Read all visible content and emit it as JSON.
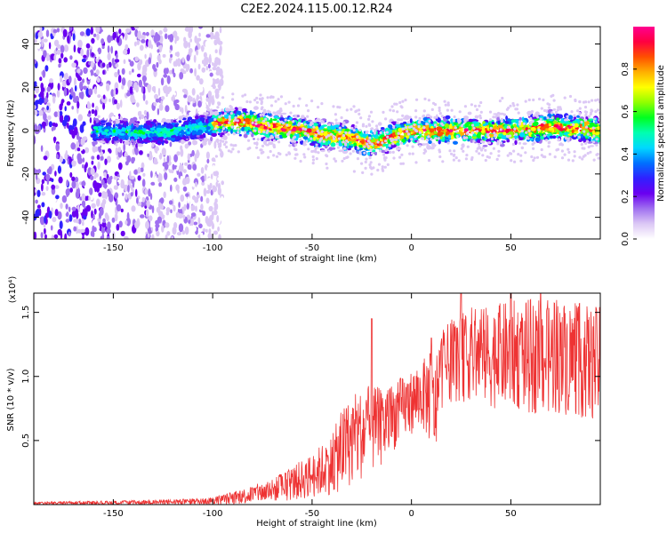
{
  "title": "C2E2.2024.115.00.12.R24",
  "chart_data": [
    {
      "type": "heatmap",
      "xlabel": "Height of straight line (km)",
      "ylabel": "Frequency (Hz)",
      "xlim": [
        -190,
        95
      ],
      "ylim": [
        -50,
        48
      ],
      "xticks": [
        -150,
        -100,
        -50,
        0,
        50
      ],
      "yticks": [
        -40,
        -20,
        0,
        20,
        40
      ],
      "colorbar": {
        "label": "Normalized spectral amplitude",
        "range": [
          0,
          1
        ],
        "ticks": [
          0.0,
          0.2,
          0.4,
          0.6,
          0.8
        ],
        "colormap": [
          "#ffffff",
          "#dcc8f5",
          "#a070f0",
          "#6a00f0",
          "#3020ff",
          "#0070ff",
          "#00d8ff",
          "#00ffb0",
          "#00ff20",
          "#90ff00",
          "#ffff00",
          "#ffb000",
          "#ff5000",
          "#ff0040",
          "#ff0090"
        ]
      },
      "ridge": {
        "x": [
          -155,
          -140,
          -125,
          -110,
          -100,
          -95,
          -85,
          -75,
          -65,
          -55,
          -45,
          -35,
          -28,
          -20,
          -15,
          -10,
          -5,
          0,
          10,
          20,
          30,
          40,
          50,
          60,
          70,
          80,
          90,
          95
        ],
        "y": [
          0,
          -1,
          -1,
          1,
          2,
          4,
          4,
          2,
          1,
          0,
          -2,
          -3,
          -4,
          -6,
          -5,
          -3,
          -1,
          0,
          0,
          0,
          0,
          0,
          0,
          1,
          2,
          1,
          1,
          -1
        ]
      }
    },
    {
      "type": "line",
      "xlabel": "Height of straight line (km)",
      "ylabel": "SNR (10 * v/v)",
      "y_multiplier": "(x10⁴)",
      "xlim": [
        -190,
        95
      ],
      "ylim": [
        0,
        1.65
      ],
      "xticks": [
        -150,
        -100,
        -50,
        0,
        50
      ],
      "yticks": [
        0.5,
        1.0,
        1.5
      ],
      "line_color": "#ee3333",
      "envelope": {
        "x": [
          -190,
          -150,
          -120,
          -105,
          -100,
          -90,
          -80,
          -70,
          -60,
          -50,
          -40,
          -35,
          -30,
          -25,
          -20,
          -15,
          -10,
          -5,
          0,
          5,
          10,
          12,
          15,
          20,
          25,
          30,
          40,
          50,
          60,
          70,
          80,
          90,
          95
        ],
        "low": [
          0.0,
          0.0,
          0.0,
          0.0,
          0.0,
          0.0,
          0.01,
          0.02,
          0.03,
          0.05,
          0.08,
          0.1,
          0.15,
          0.2,
          0.25,
          0.3,
          0.4,
          0.5,
          0.55,
          0.6,
          0.45,
          0.35,
          0.75,
          0.8,
          0.8,
          0.8,
          0.75,
          0.75,
          0.7,
          0.7,
          0.7,
          0.65,
          0.65
        ],
        "high": [
          0.02,
          0.03,
          0.04,
          0.05,
          0.06,
          0.1,
          0.15,
          0.2,
          0.3,
          0.4,
          0.55,
          0.75,
          0.85,
          0.9,
          0.95,
          0.9,
          0.95,
          1.0,
          1.05,
          1.1,
          1.25,
          1.1,
          1.35,
          1.45,
          1.5,
          1.55,
          1.55,
          1.6,
          1.6,
          1.6,
          1.6,
          1.55,
          1.55
        ]
      },
      "spikes": [
        {
          "x": -20,
          "y": 1.45
        },
        {
          "x": 10,
          "y": 1.3
        },
        {
          "x": 25,
          "y": 1.65
        },
        {
          "x": 50,
          "y": 1.65
        },
        {
          "x": 65,
          "y": 1.65
        }
      ]
    }
  ]
}
